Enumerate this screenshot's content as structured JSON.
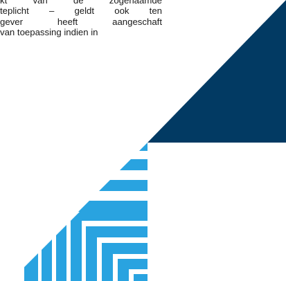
{
  "document": {
    "lines": [
      "kt van de zogenaamde",
      "teplicht – geldt ook ten",
      "gever heeft aangeschaft",
      "van toepassing indien in"
    ]
  },
  "colors": {
    "navy": "#023a63",
    "light_blue": "#29a3e0",
    "text": "#1a1a1a",
    "background": "#ffffff"
  },
  "decoration": {
    "name": "corner-brand-graphic"
  }
}
